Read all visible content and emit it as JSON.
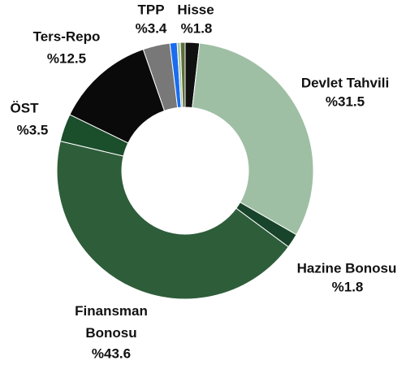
{
  "chart_data": {
    "type": "donut",
    "categories": [
      "Hisse",
      "Devlet Tahvili",
      "Hazine Bonosu",
      "Finansman Bonosu",
      "ÖST",
      "Ters-Repo",
      "TPP",
      null,
      null,
      null
    ],
    "values": [
      1.8,
      31.5,
      1.8,
      43.6,
      3.5,
      12.5,
      3.4,
      0.9,
      0.4,
      0.6
    ],
    "value_labels": [
      "%1.8",
      "%31.5",
      "%1.8",
      "%43.6",
      "%3.5",
      "%12.5",
      "%3.4",
      null,
      null,
      null
    ],
    "colors": [
      "#111111",
      "#9ebfa4",
      "#17442a",
      "#2e5d3a",
      "#1b4e2b",
      "#0a0a0a",
      "#787878",
      "#1a6cf0",
      "#a8c8a0",
      "#5e6e3a"
    ]
  }
}
